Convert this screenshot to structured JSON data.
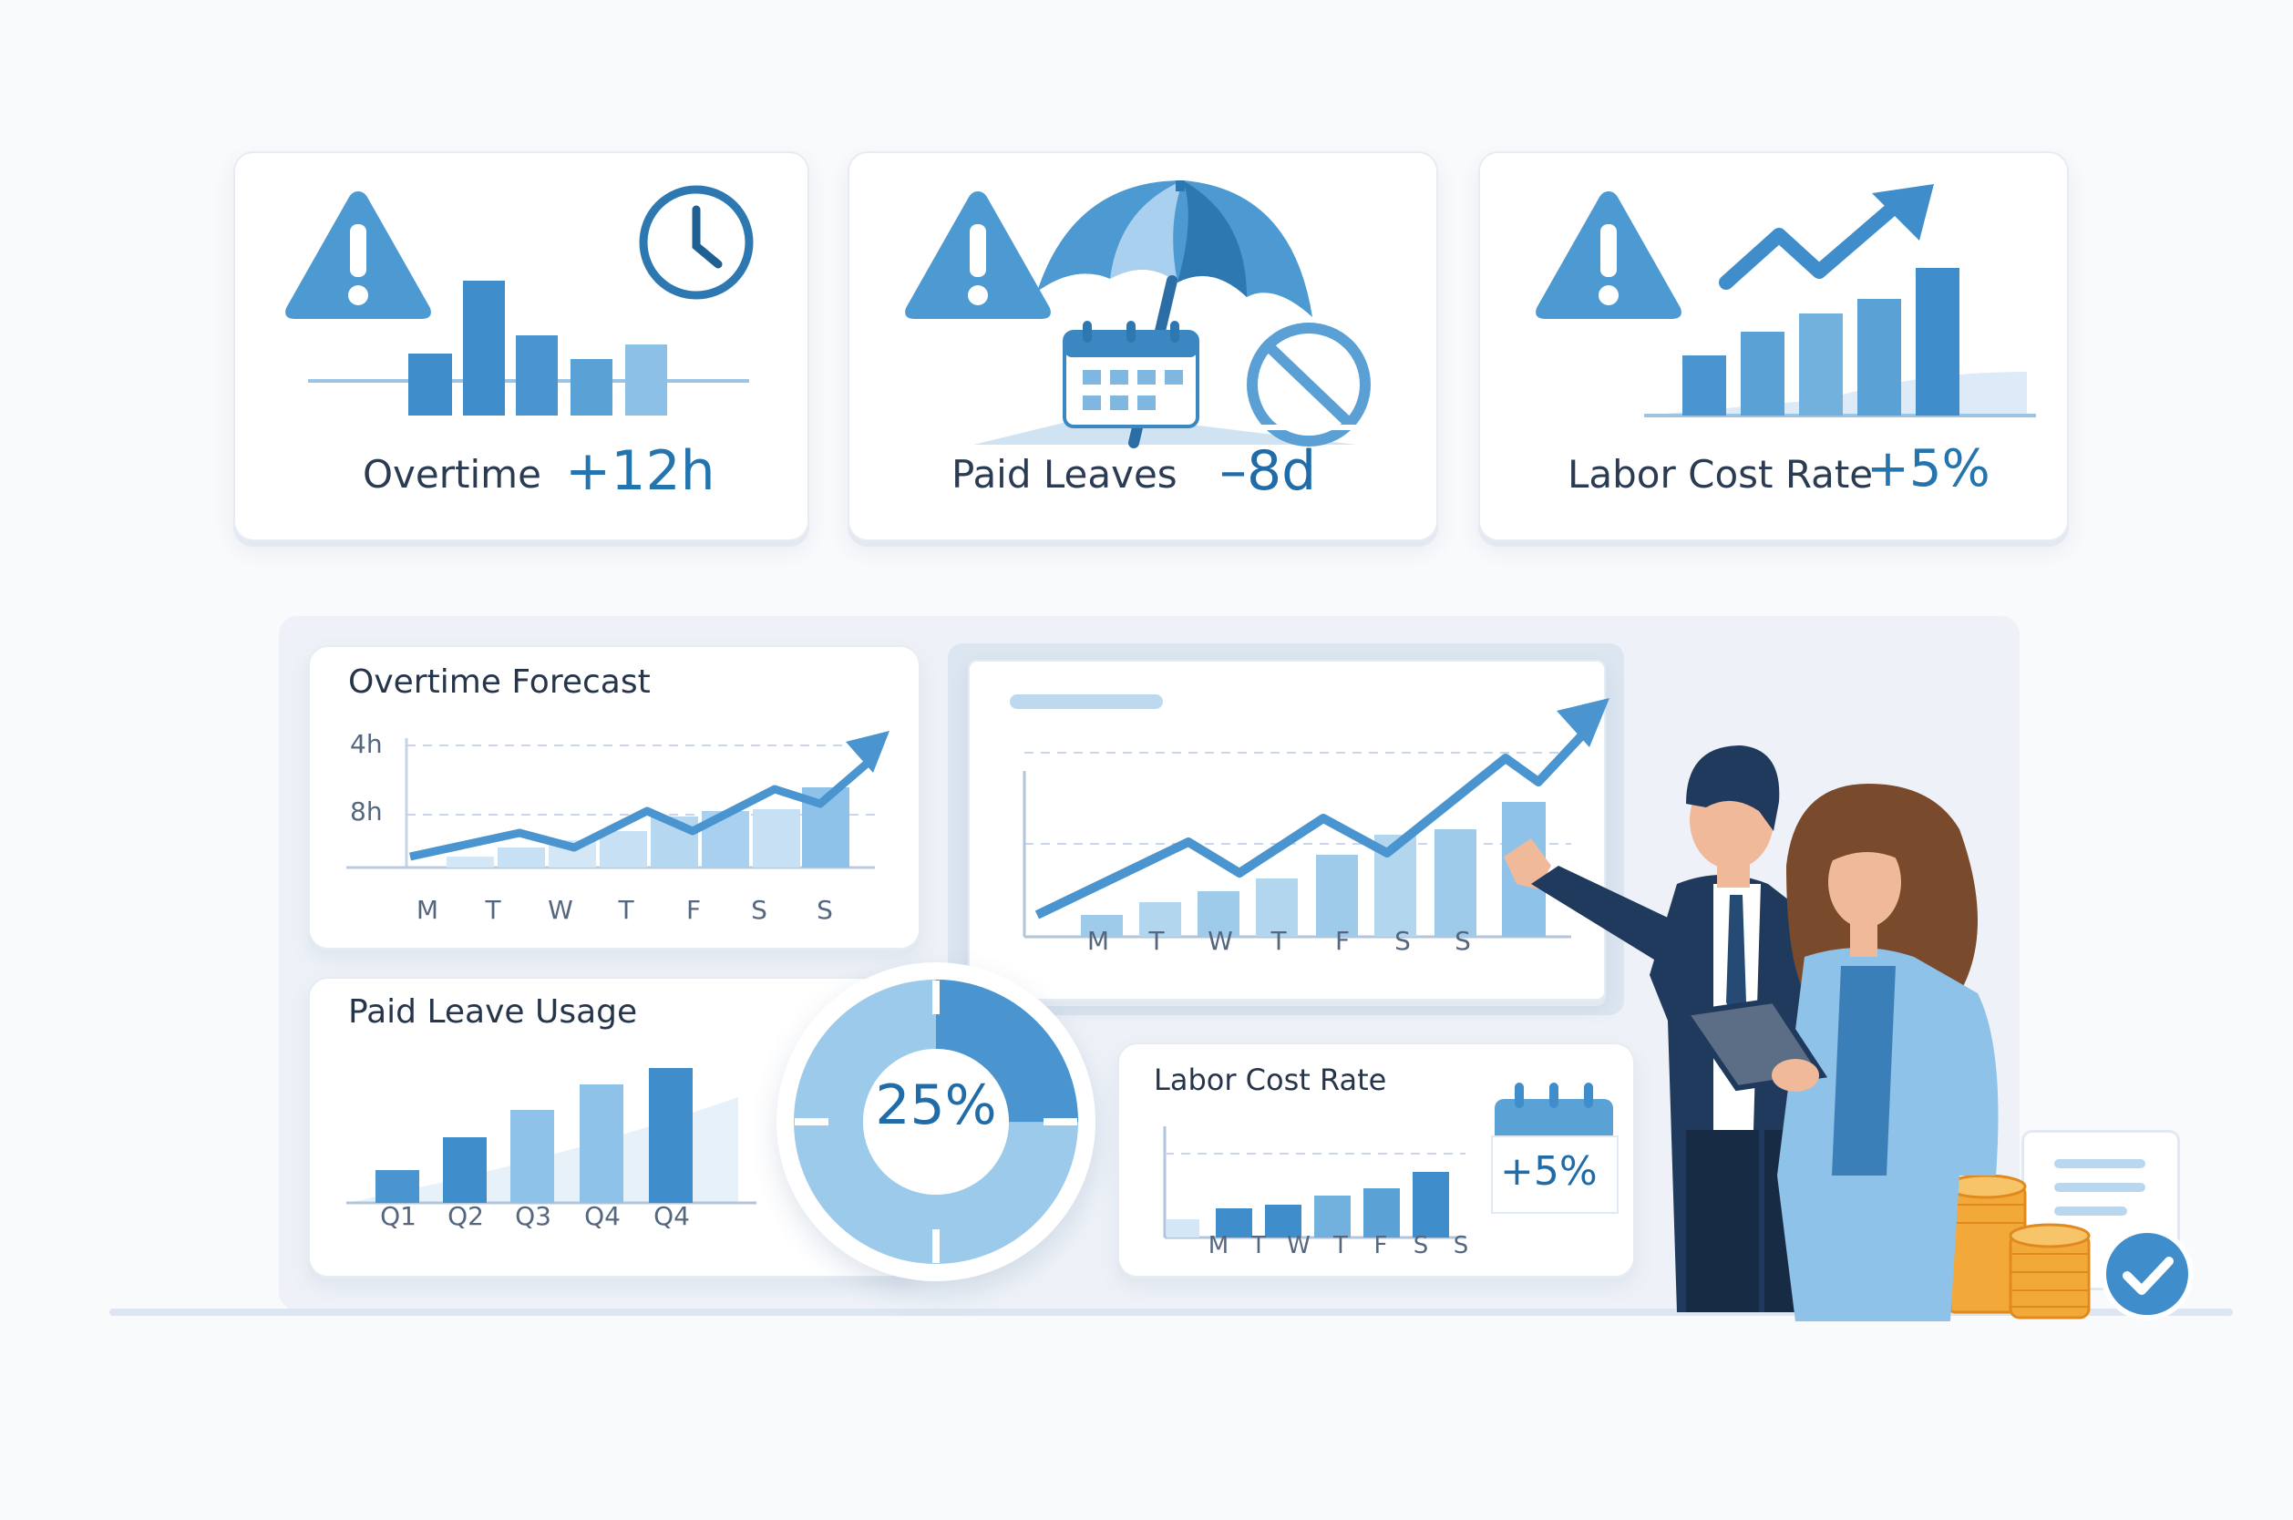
{
  "kpis": [
    {
      "label": "Overtime",
      "value": "+12h",
      "icon": "clock-icon"
    },
    {
      "label": "Paid Leaves",
      "value": "–8d",
      "icon": "beach-umbrella-icon"
    },
    {
      "label": "Labor Cost Rate",
      "value": "+5%",
      "icon": "trend-up-icon"
    }
  ],
  "overtime_forecast": {
    "title": "Overtime Forecast",
    "y_ticks": [
      "4h",
      "8h"
    ],
    "days": [
      "M",
      "T",
      "W",
      "T",
      "F",
      "S",
      "S"
    ]
  },
  "main_chart": {
    "days": [
      "M",
      "T",
      "W",
      "T",
      "F",
      "S",
      "S"
    ]
  },
  "paid_leave_usage": {
    "title": "Paid Leave Usage",
    "quarters": [
      "Q1",
      "Q2",
      "Q3",
      "Q4",
      "Q4"
    ]
  },
  "donut": {
    "label": "25%",
    "value": 25
  },
  "labor_cost_rate": {
    "title": "Labor Cost Rate",
    "badge": "+5%",
    "days": [
      "M",
      "T",
      "W",
      "T",
      "F",
      "S",
      "S"
    ]
  },
  "colors": {
    "primary": "#3d8fcb",
    "light": "#9fcbea",
    "dark_navy": "#1f3a5c",
    "gold": "#f3a93a",
    "text": "#26354a"
  }
}
